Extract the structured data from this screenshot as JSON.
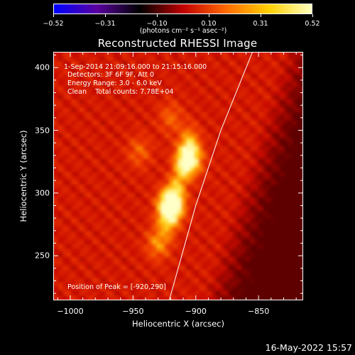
{
  "colorbar": {
    "ticks": [
      "−0.52",
      "−0.31",
      "−0.10",
      "0.10",
      "0.31",
      "0.52"
    ],
    "units": "(photons cm⁻² s⁻¹ asec⁻²)",
    "colors": [
      "#0000ff",
      "#5a00a0",
      "#000000",
      "#c00000",
      "#ff6a00",
      "#ffd000",
      "#ffffc0"
    ]
  },
  "chart_data": {
    "type": "heatmap",
    "title": "Reconstructed RHESSI Image",
    "xlabel": "Heliocentric X (arcsec)",
    "ylabel": "Heliocentric Y (arcsec)",
    "xlim": [
      -1013,
      -815
    ],
    "ylim": [
      215,
      412
    ],
    "x_ticks": [
      "−1000",
      "−950",
      "−900",
      "−850"
    ],
    "x_tick_values": [
      -1000,
      -950,
      -900,
      -850
    ],
    "y_ticks": [
      "250",
      "300",
      "350",
      "400"
    ],
    "y_tick_values": [
      250,
      300,
      350,
      400
    ],
    "peak": [
      -920,
      290
    ],
    "sources": [
      {
        "x": -920,
        "y": 290,
        "amplitude": 0.52
      },
      {
        "x": -905,
        "y": 327,
        "amplitude": 0.4
      },
      {
        "x": -930,
        "y": 260,
        "amplitude": 0.18
      },
      {
        "x": -945,
        "y": 333,
        "amplitude": 0.12
      },
      {
        "x": -920,
        "y": 360,
        "amplitude": 0.12
      }
    ],
    "limb_curve": [
      [
        -921,
        215
      ],
      [
        -900,
        290
      ],
      [
        -880,
        350
      ],
      [
        -855,
        412
      ]
    ],
    "annotations": {
      "time": "1-Sep-2014 21:09:16.000 to 21:15:16.000",
      "detectors": "Detectors: 3F 6F 9F, Att 0",
      "energy": "Energy Range: 3.0 - 6.0 keV",
      "clean_label": "Clean",
      "total_counts": "Total counts: 7.78E+04",
      "peak_position": "Position of Peak = [-920,290]"
    }
  },
  "datestamp": "16-May-2022 15:57"
}
